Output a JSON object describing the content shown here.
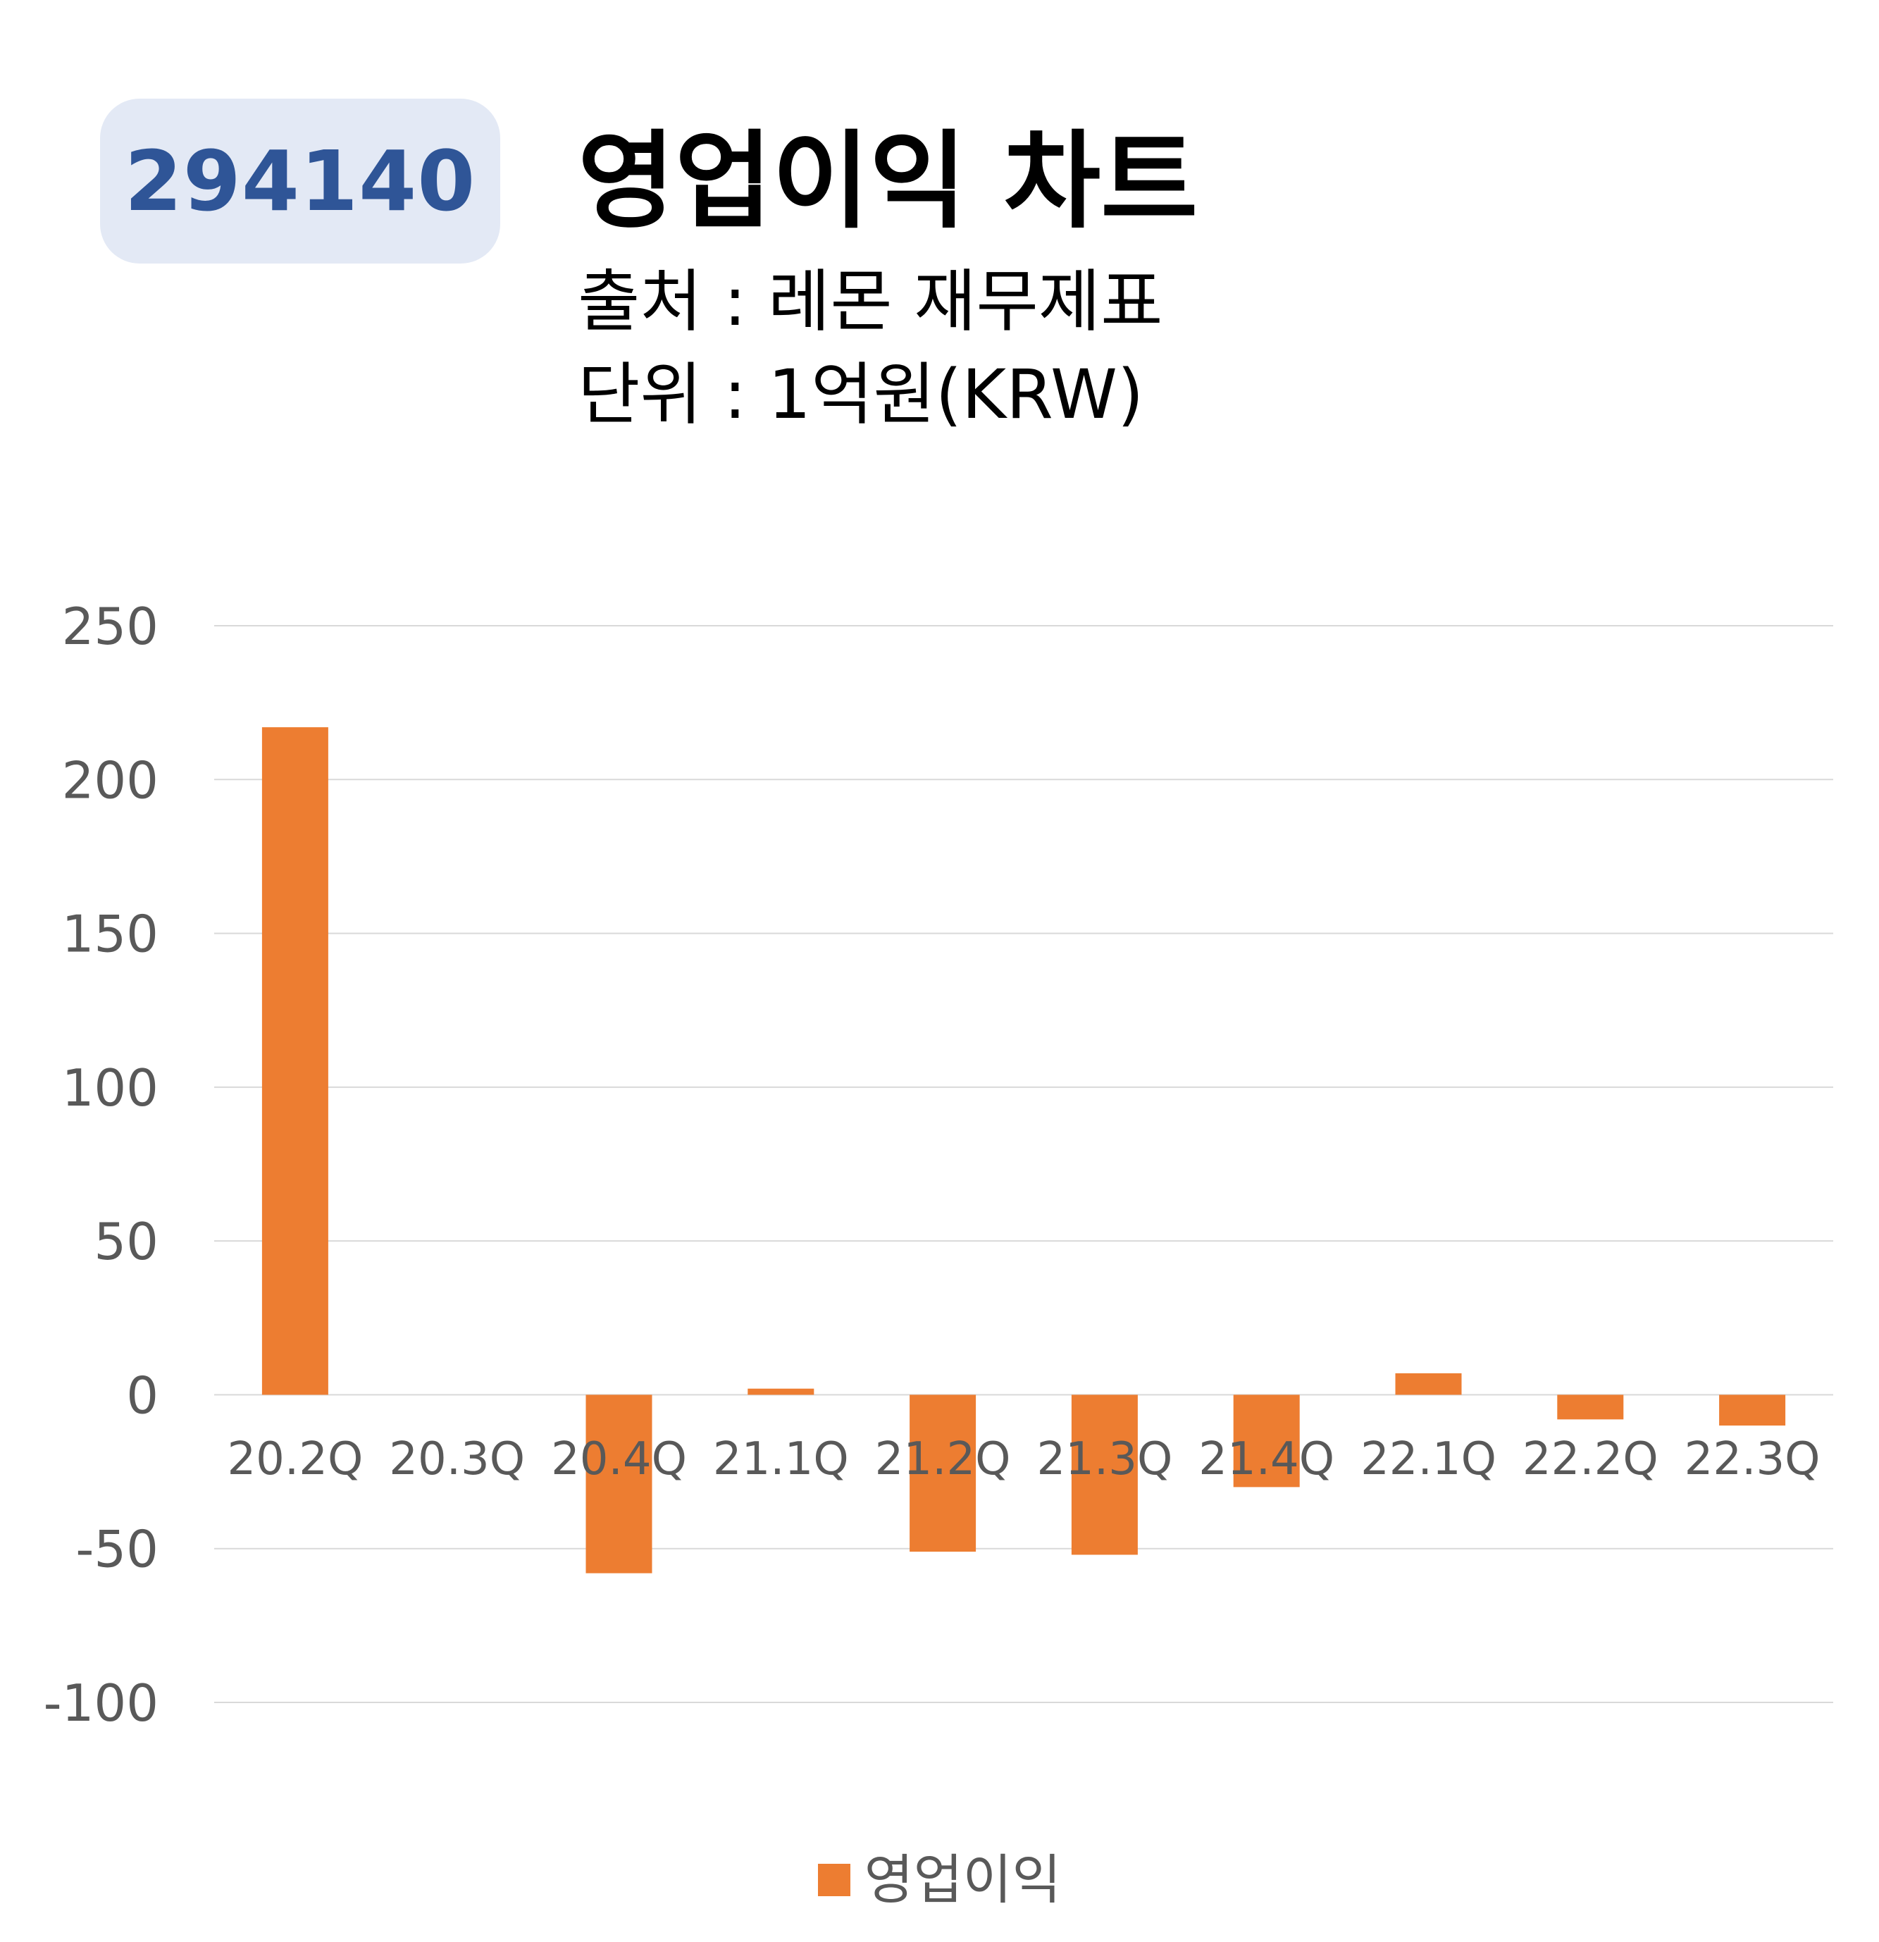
{
  "header": {
    "code": "294140",
    "title": "영업이익 차트",
    "source": "출처 : 레몬 재무제표",
    "unit": "단위 : 1억원(KRW)"
  },
  "colors": {
    "bar": "#ed7d31",
    "badge_bg": "#e3e9f5",
    "badge_text": "#2f5597",
    "grid": "#d9d9d9",
    "tick_text": "#595959"
  },
  "chart_data": {
    "type": "bar",
    "categories": [
      "20.2Q",
      "20.3Q",
      "20.4Q",
      "21.1Q",
      "21.2Q",
      "21.3Q",
      "21.4Q",
      "22.1Q",
      "22.2Q",
      "22.3Q"
    ],
    "series": [
      {
        "name": "영업이익",
        "values": [
          217,
          0,
          -58,
          2,
          -51,
          -52,
          -30,
          7,
          -8,
          -10
        ]
      }
    ],
    "ylim": [
      -100,
      250
    ],
    "yticks": [
      250,
      200,
      150,
      100,
      50,
      0,
      -50,
      -100
    ],
    "grid": true,
    "legend": "bottom"
  }
}
